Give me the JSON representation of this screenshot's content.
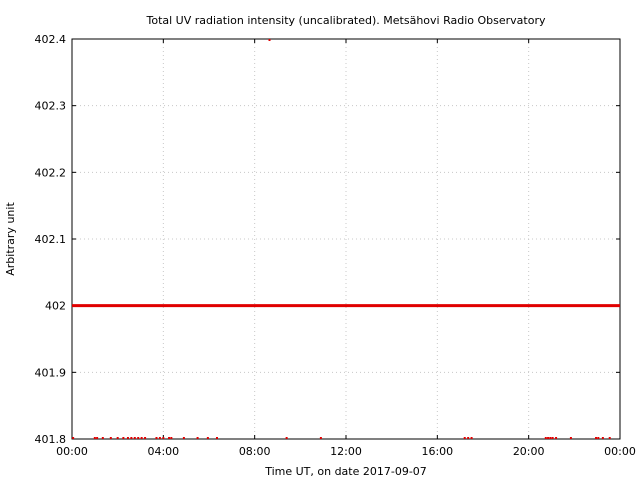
{
  "chart_data": {
    "type": "line",
    "title": "Total UV radiation intensity (uncalibrated). Metsähovi Radio Observatory",
    "xlabel": "Time UT, on date 2017-09-07",
    "ylabel": "Arbitrary unit",
    "xlim": [
      0,
      24
    ],
    "ylim": [
      401.8,
      402.4
    ],
    "x_tick_labels": [
      "00:00",
      "04:00",
      "08:00",
      "12:00",
      "16:00",
      "20:00",
      "00:00"
    ],
    "x_tick_values": [
      0,
      4,
      8,
      12,
      16,
      20,
      24
    ],
    "y_tick_labels": [
      "401.8",
      "401.9",
      "402",
      "402.1",
      "402.2",
      "402.3",
      "402.4"
    ],
    "y_tick_values": [
      401.8,
      401.9,
      402.0,
      402.1,
      402.2,
      402.3,
      402.4
    ],
    "grid": true,
    "colors": {
      "series": "#e00000",
      "grid": "#c8c8c8"
    },
    "series": [
      {
        "values_note": "",
        "baseline": {
          "x": [
            0,
            24
          ],
          "y": [
            402.0,
            402.0
          ]
        },
        "low_points": {
          "x": [
            0.05,
            1.0,
            1.1,
            1.35,
            1.7,
            2.0,
            2.25,
            2.45,
            2.6,
            2.75,
            2.9,
            3.05,
            3.2,
            3.7,
            3.85,
            4.0,
            4.25,
            4.35,
            4.9,
            5.5,
            5.95,
            6.35,
            9.4,
            10.9,
            17.2,
            17.35,
            17.5,
            20.75,
            20.85,
            20.95,
            21.05,
            21.2,
            21.85,
            22.95,
            23.05,
            23.25,
            23.55
          ],
          "y": 401.8
        },
        "high_points": {
          "x": [
            8.65
          ],
          "y": 402.4
        }
      }
    ]
  }
}
